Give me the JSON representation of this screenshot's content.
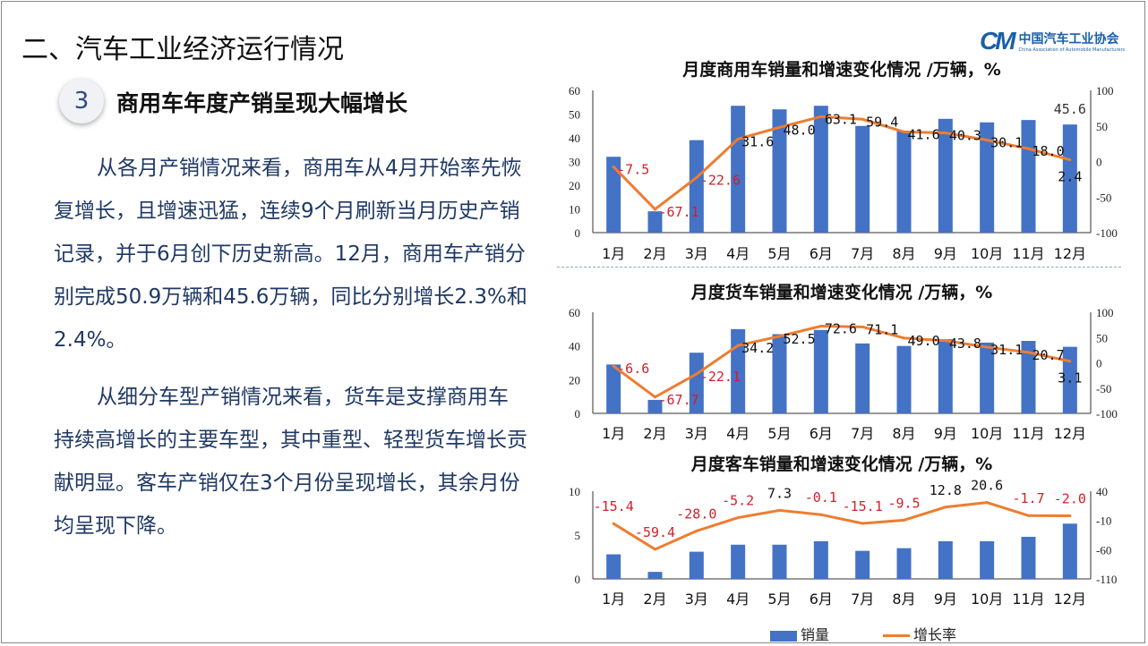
{
  "slide": {
    "title": "二、汽车工业经济运行情况",
    "logo_cn": "中国汽车工业协会",
    "logo_en": "China Association of Automobile Manufacturers",
    "logo_mark": "CAM",
    "section_number": "3",
    "subtitle": "商用车年度产销呈现大幅增长",
    "paragraphs": [
      "从各月产销情况来看，商用车从4月开始率先恢复增长，且增速迅猛，连续9个月刷新当月历史产销记录，并于6月创下历史新高。12月，商用车产销分别完成50.9万辆和45.6万辆，同比分别增长2.3%和2.4%。",
      "从细分车型产销情况来看，货车是支撑商用车持续高增长的主要车型，其中重型、轻型货车增长贡献明显。客车产销仅在3个月份呈现增长，其余月份均呈现下降。"
    ],
    "legend": {
      "bar": "销量",
      "line": "增长率"
    },
    "colors": {
      "bar": "#4472c4",
      "line": "#ed7d31",
      "negative_label": "#d0202a",
      "text": "#1f3864"
    }
  },
  "chart_data": [
    {
      "type": "bar",
      "title": "月度商用车销量和增速变化情况  /万辆，%",
      "categories": [
        "1月",
        "2月",
        "3月",
        "4月",
        "5月",
        "6月",
        "7月",
        "8月",
        "9月",
        "10月",
        "11月",
        "12月"
      ],
      "series": [
        {
          "name": "销量",
          "type": "bar",
          "axis": "left",
          "values": [
            32,
            9,
            39,
            53.5,
            52,
            53.5,
            45,
            43,
            48,
            46.5,
            47.5,
            45.6
          ]
        },
        {
          "name": "增长率",
          "type": "line",
          "axis": "right",
          "values": [
            -7.5,
            -67.1,
            -22.6,
            31.6,
            48.0,
            63.1,
            59.4,
            41.6,
            40.3,
            30.1,
            18.0,
            2.4
          ]
        }
      ],
      "bar_data_labels": {
        "11": "45.6"
      },
      "ylim": [
        0,
        60
      ],
      "yticks": [
        0,
        10,
        20,
        30,
        40,
        50,
        60
      ],
      "y2lim": [
        -100,
        100
      ],
      "y2ticks": [
        -100,
        -50,
        0,
        50,
        100
      ]
    },
    {
      "type": "bar",
      "title": "月度货车销量和增速变化情况  /万辆，%",
      "categories": [
        "1月",
        "2月",
        "3月",
        "4月",
        "5月",
        "6月",
        "7月",
        "8月",
        "9月",
        "10月",
        "11月",
        "12月"
      ],
      "series": [
        {
          "name": "销量",
          "type": "bar",
          "axis": "left",
          "values": [
            29,
            8,
            36,
            50,
            47,
            49.5,
            41.5,
            40,
            44,
            42,
            43,
            39.5
          ]
        },
        {
          "name": "增长率",
          "type": "line",
          "axis": "right",
          "values": [
            -6.6,
            -67.7,
            -22.1,
            34.2,
            52.5,
            72.6,
            71.1,
            49.0,
            43.8,
            31.1,
            20.7,
            3.1
          ]
        }
      ],
      "ylim": [
        0,
        60
      ],
      "yticks": [
        0,
        20,
        40,
        60
      ],
      "y2lim": [
        -100,
        100
      ],
      "y2ticks": [
        -100,
        -50,
        0,
        50,
        100
      ]
    },
    {
      "type": "bar",
      "title": "月度客车销量和增速变化情况  /万辆，%",
      "categories": [
        "1月",
        "2月",
        "3月",
        "4月",
        "5月",
        "6月",
        "7月",
        "8月",
        "9月",
        "10月",
        "11月",
        "12月"
      ],
      "series": [
        {
          "name": "销量",
          "type": "bar",
          "axis": "left",
          "values": [
            2.8,
            0.8,
            3.1,
            3.9,
            3.9,
            4.3,
            3.2,
            3.5,
            4.3,
            4.3,
            4.8,
            6.3
          ]
        },
        {
          "name": "增长率",
          "type": "line",
          "axis": "right",
          "values": [
            -15.4,
            -59.4,
            -28.0,
            -5.2,
            7.3,
            -0.1,
            -15.1,
            -9.5,
            12.8,
            20.6,
            -1.7,
            -2.0
          ]
        }
      ],
      "ylim": [
        0,
        10
      ],
      "yticks": [
        0,
        5,
        10
      ],
      "y2lim": [
        -110,
        40
      ],
      "y2ticks": [
        -110,
        -60,
        -10,
        40
      ]
    }
  ]
}
